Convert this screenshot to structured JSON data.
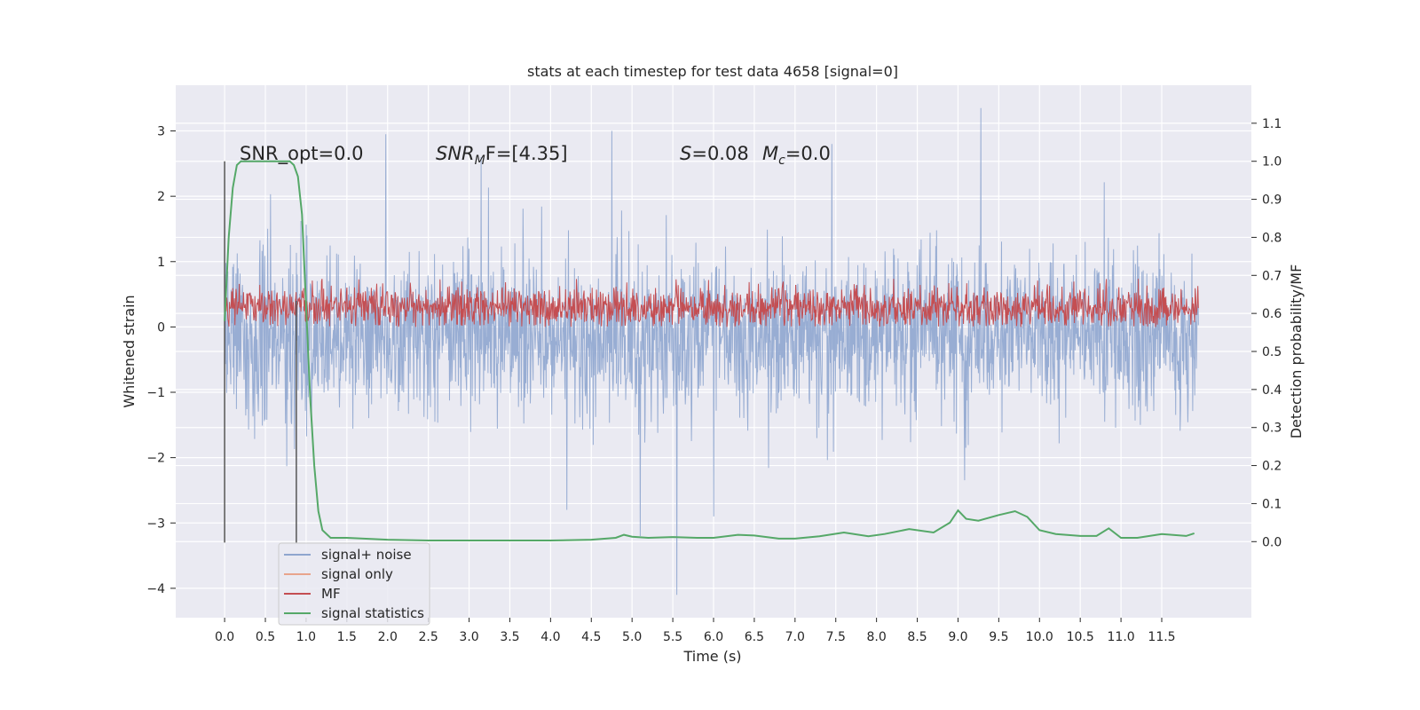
{
  "chart_data": {
    "type": "line",
    "title": "stats at each timestep for test data 4658 [signal=0]",
    "xlabel": "Time (s)",
    "ylabel": "Whitened strain",
    "y2label": "Detection probability/MF",
    "xlim": [
      -0.6,
      12.6
    ],
    "ylim": [
      -4.45,
      3.7
    ],
    "y2lim": [
      -0.2,
      1.2
    ],
    "x_ticks": [
      0.0,
      0.5,
      1.0,
      1.5,
      2.0,
      2.5,
      3.0,
      3.5,
      4.0,
      4.5,
      5.0,
      5.5,
      6.0,
      6.5,
      7.0,
      7.5,
      8.0,
      8.5,
      9.0,
      9.5,
      10.0,
      10.5,
      11.0,
      11.5
    ],
    "x_tick_labels": [
      "0.0",
      "0.5",
      "1.0",
      "1.5",
      "2.0",
      "2.5",
      "3.0",
      "3.5",
      "4.0",
      "4.5",
      "5.0",
      "5.5",
      "6.0",
      "6.5",
      "7.0",
      "7.5",
      "8.0",
      "8.5",
      "9.0",
      "9.5",
      "10.0",
      "10.5",
      "11.0",
      "11.5"
    ],
    "y_ticks": [
      3,
      2,
      1,
      0,
      -1,
      -2,
      -3,
      -4
    ],
    "y_tick_labels": [
      "3",
      "2",
      "1",
      "0",
      "−1",
      "−2",
      "−3",
      "−4"
    ],
    "y2_ticks": [
      1.1,
      1.0,
      0.9,
      0.8,
      0.7,
      0.6,
      0.5,
      0.4,
      0.3,
      0.2,
      0.1,
      0.0
    ],
    "y2_tick_labels": [
      "1.1",
      "1.0",
      "0.9",
      "0.8",
      "0.7",
      "0.6",
      "0.5",
      "0.4",
      "0.3",
      "0.2",
      "0.1",
      "0.0"
    ],
    "grid": true,
    "annotations": {
      "snr_opt": "SNR_opt=0.0",
      "snr_mf_base": "SNR",
      "snr_mf_sub": "M",
      "snr_mf_rest": "F=[4.35]",
      "s_label": "S",
      "s_value": "=0.08",
      "mc_label": "M",
      "mc_sub": "c",
      "mc_value": "=0.0"
    },
    "vertical_lines_x": [
      0.0,
      0.88
    ],
    "noise": {
      "x_range": [
        0.0,
        11.95
      ],
      "typical_range": [
        -1.4,
        1.4
      ],
      "max": 3.35,
      "min": -4.1,
      "spikes": [
        {
          "x": 1.98,
          "y": 2.95
        },
        {
          "x": 4.75,
          "y": 3.0
        },
        {
          "x": 5.55,
          "y": -4.1
        },
        {
          "x": 5.1,
          "y": -3.2
        },
        {
          "x": 6.0,
          "y": -2.9
        },
        {
          "x": 9.28,
          "y": 3.35
        },
        {
          "x": 4.2,
          "y": -2.8
        },
        {
          "x": 3.15,
          "y": 2.6
        },
        {
          "x": 7.45,
          "y": 2.8
        }
      ]
    },
    "mf_range": [
      0.0,
      0.75
    ],
    "signal_statistics": {
      "x": [
        0.0,
        0.05,
        0.1,
        0.15,
        0.2,
        0.3,
        0.5,
        0.7,
        0.75,
        0.8,
        0.85,
        0.9,
        0.95,
        1.0,
        1.05,
        1.1,
        1.15,
        1.2,
        1.3,
        1.5,
        2.0,
        2.5,
        3.0,
        3.5,
        4.0,
        4.5,
        4.8,
        4.9,
        5.0,
        5.2,
        5.5,
        5.8,
        6.0,
        6.3,
        6.5,
        6.8,
        7.0,
        7.3,
        7.6,
        7.9,
        8.1,
        8.4,
        8.7,
        8.9,
        9.0,
        9.1,
        9.25,
        9.5,
        9.7,
        9.85,
        10.0,
        10.2,
        10.5,
        10.7,
        10.85,
        11.0,
        11.2,
        11.5,
        11.8,
        11.9
      ],
      "y": [
        0.58,
        0.8,
        0.93,
        0.99,
        1.0,
        1.0,
        1.0,
        1.0,
        1.0,
        1.0,
        0.99,
        0.96,
        0.86,
        0.62,
        0.38,
        0.2,
        0.08,
        0.03,
        0.01,
        0.01,
        0.005,
        0.003,
        0.003,
        0.003,
        0.003,
        0.005,
        0.01,
        0.018,
        0.013,
        0.01,
        0.012,
        0.01,
        0.01,
        0.018,
        0.016,
        0.008,
        0.008,
        0.014,
        0.024,
        0.014,
        0.02,
        0.033,
        0.024,
        0.05,
        0.082,
        0.06,
        0.055,
        0.07,
        0.08,
        0.065,
        0.03,
        0.02,
        0.015,
        0.015,
        0.035,
        0.01,
        0.01,
        0.02,
        0.015,
        0.022
      ]
    },
    "series": [
      {
        "name": "signal+ noise",
        "color": "#8fa6cf"
      },
      {
        "name": "signal only",
        "color": "#e8a48c"
      },
      {
        "name": "MF",
        "color": "#c44e52"
      },
      {
        "name": "signal statistics",
        "color": "#55a868"
      }
    ],
    "legend_location": "lower-left",
    "background_color": "#eaeaf2",
    "grid_color": "#ffffff",
    "vline_color": "#555555"
  }
}
